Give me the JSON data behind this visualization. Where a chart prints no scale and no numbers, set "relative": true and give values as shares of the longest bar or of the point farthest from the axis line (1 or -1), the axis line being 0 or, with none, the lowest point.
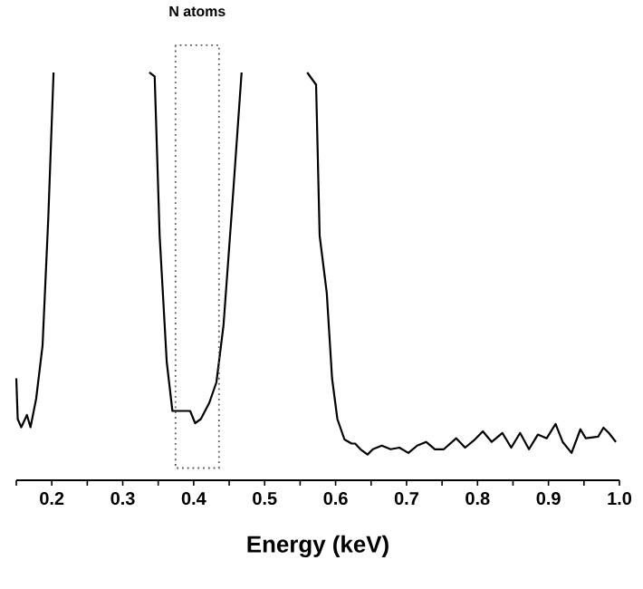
{
  "chart_data": {
    "type": "line",
    "relative": true,
    "xlabel": "Energy (keV)",
    "tick_labels": "x",
    "color": "#000000",
    "xlim": [
      0.15,
      1.0
    ],
    "xticks": [
      {
        "value": 0.15,
        "label": null
      },
      0.2,
      {
        "value": 0.25,
        "label": null
      },
      0.3,
      {
        "value": 0.35,
        "label": null
      },
      0.4,
      {
        "value": 0.45,
        "label": null
      },
      0.5,
      {
        "value": 0.55,
        "label": null
      },
      0.6,
      {
        "value": 0.65,
        "label": null
      },
      0.7,
      {
        "value": 0.75,
        "label": null
      },
      0.8,
      {
        "value": 0.85,
        "label": null
      },
      0.9,
      {
        "value": 0.95,
        "label": null
      },
      {
        "value": 1.0,
        "label": "1.0"
      }
    ],
    "x": [
      0.15,
      0.152,
      0.157,
      0.165,
      0.17,
      0.178,
      0.187,
      0.195,
      0.2025,
      0.27,
      0.3375,
      0.345,
      0.352,
      0.362,
      0.37,
      0.385,
      0.395,
      0.402,
      0.41,
      0.422,
      0.432,
      0.442,
      0.455,
      0.4675,
      0.51,
      0.56,
      0.5725,
      0.5775,
      0.5875,
      0.595,
      0.6025,
      0.6125,
      0.6225,
      0.6275,
      0.635,
      0.645,
      0.6525,
      0.665,
      0.6775,
      0.69,
      0.7025,
      0.715,
      0.7275,
      0.74,
      0.7525,
      0.77,
      0.7825,
      0.795,
      0.8075,
      0.82,
      0.835,
      0.8475,
      0.86,
      0.8725,
      0.885,
      0.8975,
      0.91,
      0.92,
      0.9325,
      0.945,
      0.9525,
      0.97,
      0.9775,
      0.985,
      0.995
    ],
    "values": [
      0.25,
      0.15,
      0.13,
      0.16,
      0.13,
      0.2,
      0.33,
      0.64,
      1.0,
      null,
      1.0,
      0.99,
      0.6,
      0.29,
      0.17,
      0.17,
      0.17,
      0.14,
      0.15,
      0.19,
      0.24,
      0.38,
      0.69,
      1.0,
      null,
      1.0,
      0.97,
      0.6,
      0.46,
      0.25,
      0.15,
      0.1,
      0.09,
      0.09,
      0.076,
      0.063,
      0.076,
      0.085,
      0.076,
      0.08,
      0.067,
      0.085,
      0.094,
      0.076,
      0.076,
      0.103,
      0.08,
      0.098,
      0.12,
      0.094,
      0.116,
      0.08,
      0.116,
      0.076,
      0.112,
      0.103,
      0.138,
      0.094,
      0.067,
      0.125,
      0.103,
      0.107,
      0.129,
      0.116,
      0.094
    ],
    "annotations": [
      "N atoms"
    ]
  }
}
